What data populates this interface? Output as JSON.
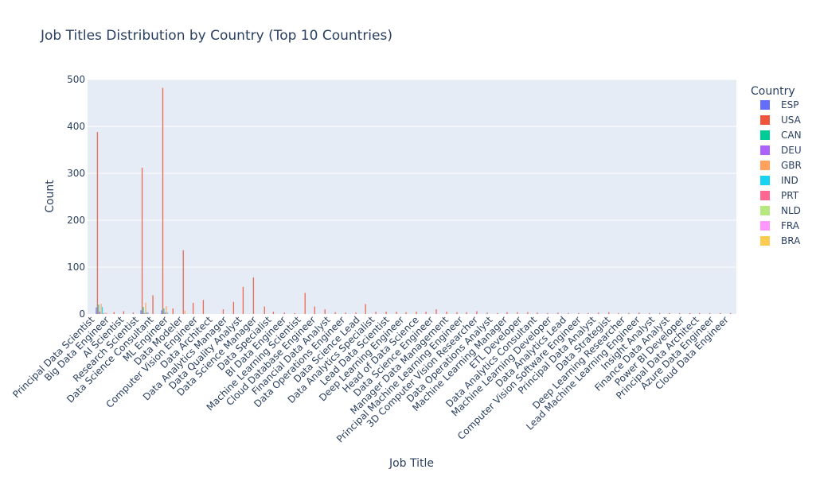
{
  "chart_data": {
    "type": "bar",
    "title": "Job Titles Distribution by Country (Top 10 Countries)",
    "xlabel": "Job Title",
    "ylabel": "Count",
    "ylim": [
      0,
      500
    ],
    "yticks": [
      0,
      100,
      200,
      300,
      400,
      500
    ],
    "grid": true,
    "legend_title": "Country",
    "legend_position": "right",
    "categories": [
      "Principal Data Scientist",
      "Big Data Engineer",
      "AI Scientist",
      "Research Scientist",
      "Data Science Consultant",
      "ML Engineer",
      "Data Modeler",
      "Computer Vision Engineer",
      "Data Architect",
      "Data Analytics Manager",
      "Data Quality Analyst",
      "Data Science Manager",
      "Data Specialist",
      "BI Data Engineer",
      "Machine Learning Scientist",
      "Cloud Database Engineer",
      "Financial Data Analyst",
      "Data Operations Engineer",
      "Data Science Lead",
      "Data Analytics Specialist",
      "Lead Data Scientist",
      "Deep Learning Engineer",
      "Head of Data Science",
      "Data Science Engineer",
      "Manager Data Management",
      "Principal Machine Learning Engineer",
      "3D Computer Vision Researcher",
      "Data Operations Analyst",
      "Machine Learning Manager",
      "ETL Developer",
      "Data Analytics Consultant",
      "Machine Learning Developer",
      "Data Analytics Lead",
      "Computer Vision Software Engineer",
      "Principal Data Analyst",
      "Data Strategist",
      "Deep Learning Researcher",
      "Lead Machine Learning Engineer",
      "Insight Analyst",
      "Finance Data Analyst",
      "Power BI Developer",
      "Principal Data Architect",
      "Azure Data Engineer",
      "Cloud Data Engineer"
    ],
    "series": [
      {
        "name": "ESP",
        "color": "#636efa"
      },
      {
        "name": "USA",
        "color": "#ef553b"
      },
      {
        "name": "CAN",
        "color": "#00cc96"
      },
      {
        "name": "DEU",
        "color": "#ab63fa"
      },
      {
        "name": "GBR",
        "color": "#ffa15a"
      },
      {
        "name": "IND",
        "color": "#19d3f3"
      },
      {
        "name": "PRT",
        "color": "#ff6692"
      },
      {
        "name": "NLD",
        "color": "#b6e880"
      },
      {
        "name": "FRA",
        "color": "#ff97ff"
      },
      {
        "name": "BRA",
        "color": "#fecb52"
      }
    ],
    "bars": [
      {
        "series": "ESP",
        "x": 0.09,
        "y": 14
      },
      {
        "series": "USA",
        "x": 0.17,
        "y": 388
      },
      {
        "series": "CAN",
        "x": 0.25,
        "y": 20
      },
      {
        "series": "DEU",
        "x": 0.33,
        "y": 5
      },
      {
        "series": "GBR",
        "x": 0.42,
        "y": 22
      },
      {
        "series": "IND",
        "x": 0.5,
        "y": 15
      },
      {
        "series": "PRT",
        "x": 0.58,
        "y": 2
      },
      {
        "series": "NLD",
        "x": 0.66,
        "y": 3
      },
      {
        "series": "FRA",
        "x": 0.75,
        "y": 3
      },
      {
        "series": "BRA",
        "x": 0.83,
        "y": 2
      },
      {
        "series": "USA",
        "x": 1.3,
        "y": 4
      },
      {
        "series": "USA",
        "x": 1.95,
        "y": 6
      },
      {
        "series": "USA",
        "x": 2.6,
        "y": 3
      },
      {
        "series": "ESP",
        "x": 3.12,
        "y": 8
      },
      {
        "series": "USA",
        "x": 3.2,
        "y": 312
      },
      {
        "series": "CAN",
        "x": 3.28,
        "y": 15
      },
      {
        "series": "DEU",
        "x": 3.36,
        "y": 2
      },
      {
        "series": "GBR",
        "x": 3.44,
        "y": 24
      },
      {
        "series": "IND",
        "x": 3.52,
        "y": 4
      },
      {
        "series": "PRT",
        "x": 3.6,
        "y": 3
      },
      {
        "series": "USA",
        "x": 3.93,
        "y": 40
      },
      {
        "series": "ESP",
        "x": 4.52,
        "y": 8
      },
      {
        "series": "USA",
        "x": 4.6,
        "y": 482
      },
      {
        "series": "CAN",
        "x": 4.68,
        "y": 12
      },
      {
        "series": "DEU",
        "x": 4.76,
        "y": 3
      },
      {
        "series": "GBR",
        "x": 4.84,
        "y": 17
      },
      {
        "series": "IND",
        "x": 4.92,
        "y": 3
      },
      {
        "series": "USA",
        "x": 5.29,
        "y": 12
      },
      {
        "series": "USA",
        "x": 5.99,
        "y": 136
      },
      {
        "series": "GBR",
        "x": 6.1,
        "y": 7
      },
      {
        "series": "USA",
        "x": 6.66,
        "y": 24
      },
      {
        "series": "USA",
        "x": 7.35,
        "y": 30
      },
      {
        "series": "USA",
        "x": 8.7,
        "y": 10
      },
      {
        "series": "USA",
        "x": 9.4,
        "y": 26
      },
      {
        "series": "USA",
        "x": 10.05,
        "y": 58
      },
      {
        "series": "USA",
        "x": 10.75,
        "y": 78
      },
      {
        "series": "USA",
        "x": 11.5,
        "y": 16
      },
      {
        "series": "USA",
        "x": 12.1,
        "y": 5
      },
      {
        "series": "USA",
        "x": 12.85,
        "y": 3
      },
      {
        "series": "USA",
        "x": 13.55,
        "y": 2
      },
      {
        "series": "USA",
        "x": 14.25,
        "y": 45
      },
      {
        "series": "USA",
        "x": 14.9,
        "y": 16
      },
      {
        "series": "USA",
        "x": 15.6,
        "y": 10
      },
      {
        "series": "USA",
        "x": 16.3,
        "y": 4
      },
      {
        "series": "USA",
        "x": 17.0,
        "y": 3
      },
      {
        "series": "USA",
        "x": 17.7,
        "y": 3
      },
      {
        "series": "USA",
        "x": 18.35,
        "y": 21
      },
      {
        "series": "USA",
        "x": 19.05,
        "y": 5
      },
      {
        "series": "USA",
        "x": 19.75,
        "y": 5
      },
      {
        "series": "USA",
        "x": 20.45,
        "y": 5
      },
      {
        "series": "USA",
        "x": 21.1,
        "y": 4
      },
      {
        "series": "USA",
        "x": 21.8,
        "y": 5
      },
      {
        "series": "USA",
        "x": 22.45,
        "y": 5
      },
      {
        "series": "USA",
        "x": 23.15,
        "y": 10
      },
      {
        "series": "USA",
        "x": 23.85,
        "y": 5
      },
      {
        "series": "USA",
        "x": 24.55,
        "y": 4
      },
      {
        "series": "USA",
        "x": 25.2,
        "y": 4
      },
      {
        "series": "USA",
        "x": 25.9,
        "y": 6
      },
      {
        "series": "USA",
        "x": 26.6,
        "y": 3
      },
      {
        "series": "USA",
        "x": 27.3,
        "y": 2
      },
      {
        "series": "USA",
        "x": 27.95,
        "y": 4
      },
      {
        "series": "USA",
        "x": 28.65,
        "y": 4
      },
      {
        "series": "USA",
        "x": 29.35,
        "y": 4
      },
      {
        "series": "USA",
        "x": 30.0,
        "y": 3
      },
      {
        "series": "USA",
        "x": 30.7,
        "y": 2
      },
      {
        "series": "USA",
        "x": 31.4,
        "y": 3
      },
      {
        "series": "USA",
        "x": 32.1,
        "y": 2
      },
      {
        "series": "USA",
        "x": 32.8,
        "y": 2
      },
      {
        "series": "USA",
        "x": 33.45,
        "y": 2
      },
      {
        "series": "USA",
        "x": 34.15,
        "y": 3
      },
      {
        "series": "USA",
        "x": 34.85,
        "y": 4
      },
      {
        "series": "USA",
        "x": 35.5,
        "y": 2
      },
      {
        "series": "USA",
        "x": 36.2,
        "y": 2
      },
      {
        "series": "USA",
        "x": 36.9,
        "y": 3
      },
      {
        "series": "USA",
        "x": 37.6,
        "y": 2
      },
      {
        "series": "USA",
        "x": 38.3,
        "y": 2
      },
      {
        "series": "USA",
        "x": 38.95,
        "y": 2
      },
      {
        "series": "USA",
        "x": 39.65,
        "y": 2
      },
      {
        "series": "USA",
        "x": 40.35,
        "y": 2
      },
      {
        "series": "USA",
        "x": 41.0,
        "y": 2
      },
      {
        "series": "USA",
        "x": 41.7,
        "y": 2
      },
      {
        "series": "USA",
        "x": 42.4,
        "y": 2
      },
      {
        "series": "USA",
        "x": 43.1,
        "y": 2
      }
    ]
  }
}
